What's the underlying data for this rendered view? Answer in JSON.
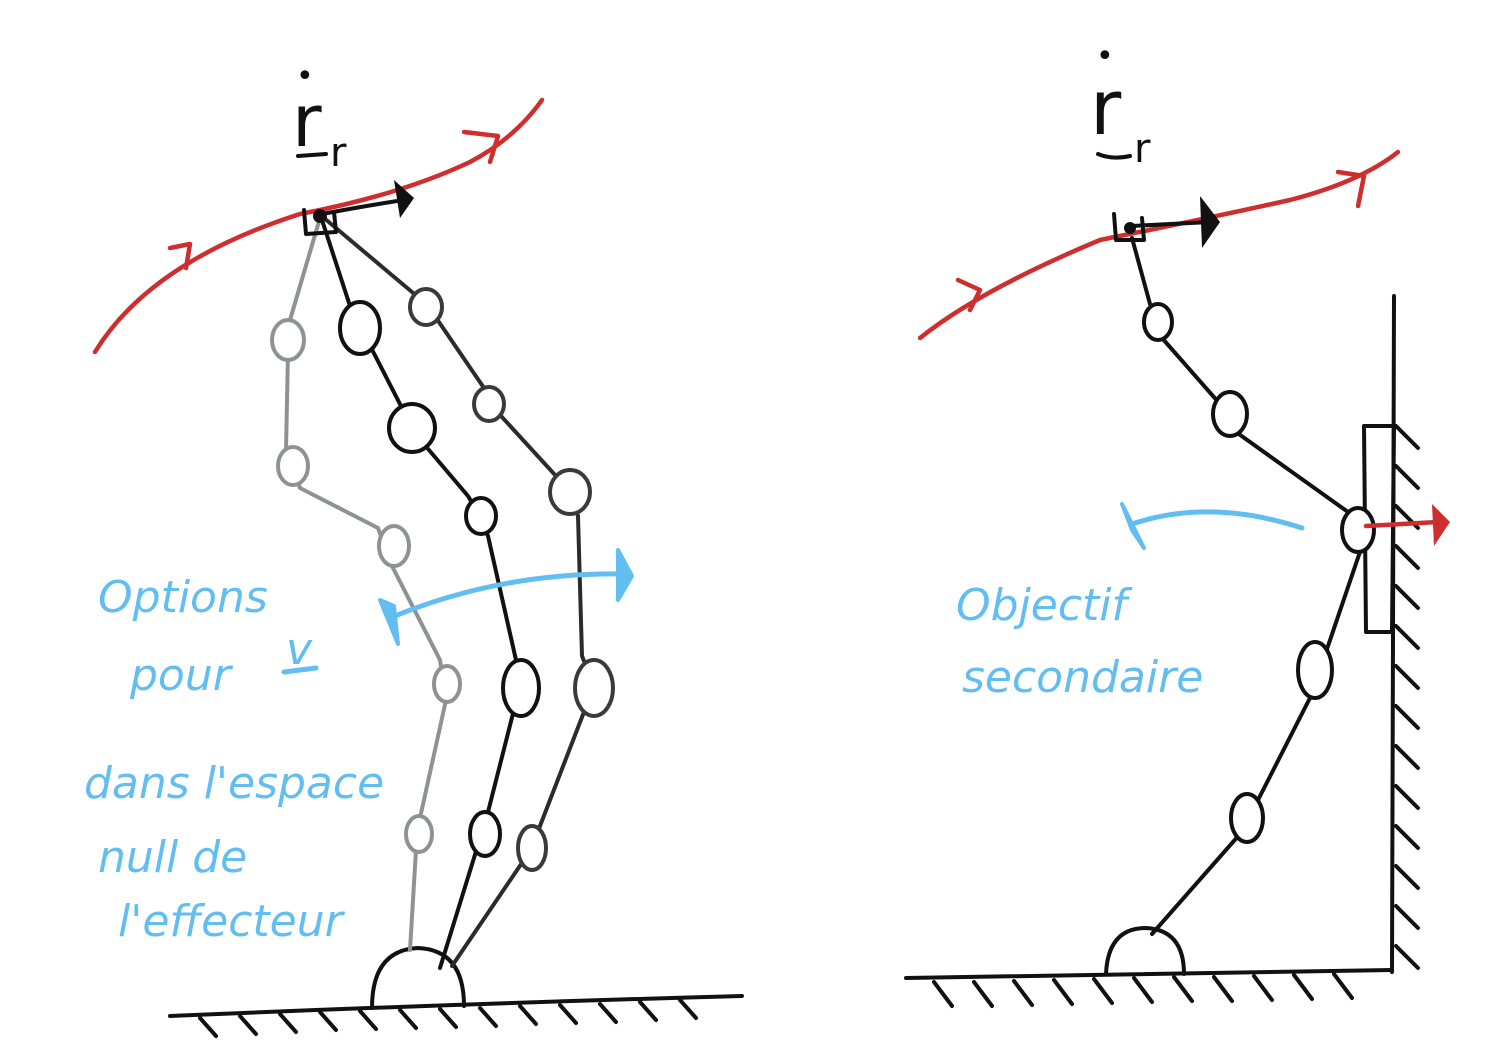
{
  "left_panel": {
    "velocity_symbol": {
      "dot": "•",
      "letter": "r",
      "subscript": "r"
    },
    "annotation": {
      "line1": "Options",
      "line2_prefix": "pour",
      "line2_symbol": "v",
      "line3": "dans l'espace",
      "line4": "null de",
      "line5": "l'effecteur"
    }
  },
  "right_panel": {
    "velocity_symbol": {
      "dot": "•",
      "letter": "r",
      "subscript": "r"
    },
    "annotation": {
      "line1": "Objectif",
      "line2": "secondaire"
    }
  },
  "colors": {
    "trajectory": "#cf2e2e",
    "annotation": "#62bdf0",
    "ink": "#111111",
    "ghost_arm": "#8e9295"
  }
}
